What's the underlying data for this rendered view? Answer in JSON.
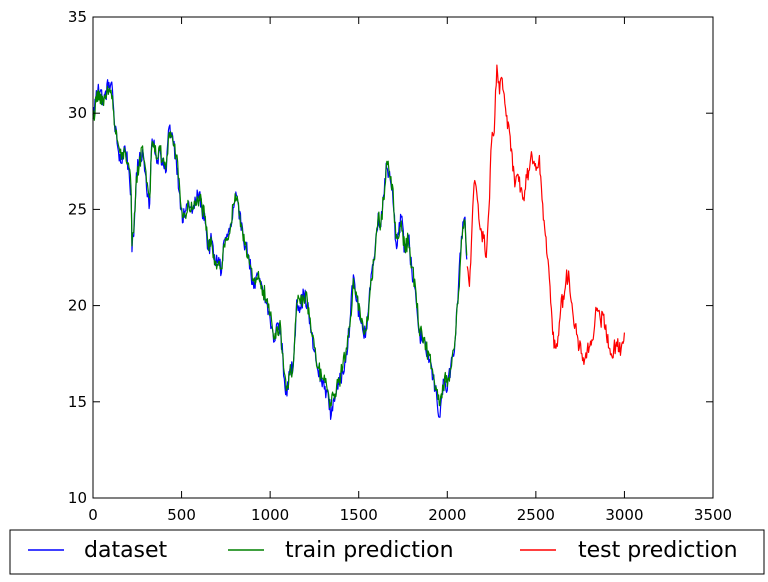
{
  "chart_data": {
    "type": "line",
    "title": "",
    "xlabel": "",
    "ylabel": "",
    "xlim": [
      0,
      3500
    ],
    "ylim": [
      10,
      35
    ],
    "x_ticks": [
      0,
      500,
      1000,
      1500,
      2000,
      2500,
      3000,
      3500
    ],
    "y_ticks": [
      10,
      15,
      20,
      25,
      30,
      35
    ],
    "grid": false,
    "legend_position": "bottom (outside plot, horizontal)",
    "series": [
      {
        "name": "dataset",
        "color": "#0000ff",
        "points": [
          [
            0,
            29.9
          ],
          [
            30,
            31.5
          ],
          [
            60,
            30.6
          ],
          [
            90,
            31.6
          ],
          [
            110,
            31.2
          ],
          [
            120,
            29.6
          ],
          [
            140,
            28.2
          ],
          [
            160,
            27.4
          ],
          [
            180,
            28.3
          ],
          [
            200,
            27.2
          ],
          [
            215,
            25.8
          ],
          [
            220,
            22.8
          ],
          [
            230,
            23.6
          ],
          [
            245,
            26.9
          ],
          [
            260,
            27.4
          ],
          [
            280,
            28.1
          ],
          [
            295,
            26.9
          ],
          [
            310,
            25.8
          ],
          [
            320,
            25.3
          ],
          [
            330,
            28.2
          ],
          [
            345,
            28.6
          ],
          [
            360,
            27.4
          ],
          [
            375,
            28.1
          ],
          [
            390,
            27.3
          ],
          [
            410,
            26.9
          ],
          [
            430,
            29.3
          ],
          [
            450,
            28.8
          ],
          [
            470,
            27.6
          ],
          [
            490,
            25.8
          ],
          [
            505,
            24.3
          ],
          [
            520,
            24.9
          ],
          [
            540,
            25.4
          ],
          [
            560,
            24.8
          ],
          [
            580,
            25.4
          ],
          [
            600,
            25.9
          ],
          [
            615,
            24.9
          ],
          [
            630,
            24.8
          ],
          [
            650,
            22.9
          ],
          [
            670,
            23.4
          ],
          [
            690,
            22.1
          ],
          [
            710,
            22.5
          ],
          [
            725,
            21.7
          ],
          [
            740,
            23.4
          ],
          [
            760,
            23.6
          ],
          [
            780,
            24.1
          ],
          [
            795,
            25.1
          ],
          [
            810,
            25.7
          ],
          [
            825,
            24.5
          ],
          [
            840,
            24.3
          ],
          [
            860,
            23.1
          ],
          [
            880,
            22.6
          ],
          [
            900,
            21.1
          ],
          [
            915,
            20.9
          ],
          [
            930,
            21.6
          ],
          [
            945,
            21.1
          ],
          [
            960,
            20.6
          ],
          [
            980,
            20.1
          ],
          [
            1000,
            19.3
          ],
          [
            1020,
            18.1
          ],
          [
            1040,
            19.1
          ],
          [
            1060,
            18.6
          ],
          [
            1080,
            16.2
          ],
          [
            1095,
            15.3
          ],
          [
            1110,
            16.6
          ],
          [
            1130,
            16.8
          ],
          [
            1150,
            20.3
          ],
          [
            1170,
            19.9
          ],
          [
            1190,
            20.6
          ],
          [
            1210,
            20.1
          ],
          [
            1230,
            18.6
          ],
          [
            1250,
            17.6
          ],
          [
            1270,
            16.6
          ],
          [
            1290,
            16.1
          ],
          [
            1310,
            15.8
          ],
          [
            1330,
            15.1
          ],
          [
            1345,
            14.3
          ],
          [
            1360,
            15.2
          ],
          [
            1375,
            15.6
          ],
          [
            1390,
            15.9
          ],
          [
            1410,
            16.6
          ],
          [
            1430,
            17.6
          ],
          [
            1450,
            19.1
          ],
          [
            1470,
            21.6
          ],
          [
            1490,
            20.2
          ],
          [
            1510,
            19.2
          ],
          [
            1530,
            18.3
          ],
          [
            1550,
            19.4
          ],
          [
            1570,
            21.6
          ],
          [
            1590,
            22.6
          ],
          [
            1610,
            24.8
          ],
          [
            1625,
            24.1
          ],
          [
            1640,
            25.7
          ],
          [
            1655,
            27.4
          ],
          [
            1670,
            26.9
          ],
          [
            1690,
            26.1
          ],
          [
            1710,
            23.3
          ],
          [
            1725,
            23.7
          ],
          [
            1740,
            24.6
          ],
          [
            1760,
            22.8
          ],
          [
            1780,
            23.6
          ],
          [
            1800,
            21.8
          ],
          [
            1820,
            20.8
          ],
          [
            1840,
            18.6
          ],
          [
            1860,
            18.1
          ],
          [
            1880,
            17.6
          ],
          [
            1900,
            17.2
          ],
          [
            1920,
            16.2
          ],
          [
            1940,
            15.3
          ],
          [
            1955,
            14.2
          ],
          [
            1970,
            15.4
          ],
          [
            1985,
            16.1
          ],
          [
            2000,
            15.6
          ],
          [
            2020,
            16.9
          ],
          [
            2040,
            17.6
          ],
          [
            2060,
            20.3
          ],
          [
            2080,
            23.6
          ],
          [
            2100,
            24.6
          ],
          [
            2110,
            22.4
          ]
        ]
      },
      {
        "name": "train prediction",
        "color": "#008000",
        "points": [
          [
            0,
            29.7
          ],
          [
            30,
            31.2
          ],
          [
            60,
            30.4
          ],
          [
            90,
            31.2
          ],
          [
            110,
            30.9
          ],
          [
            120,
            29.4
          ],
          [
            140,
            28.5
          ],
          [
            160,
            27.6
          ],
          [
            180,
            28.0
          ],
          [
            200,
            27.4
          ],
          [
            215,
            26.0
          ],
          [
            220,
            23.1
          ],
          [
            230,
            23.8
          ],
          [
            245,
            26.7
          ],
          [
            260,
            27.2
          ],
          [
            280,
            28.3
          ],
          [
            295,
            27.2
          ],
          [
            310,
            26.1
          ],
          [
            320,
            25.6
          ],
          [
            330,
            28.0
          ],
          [
            345,
            28.4
          ],
          [
            360,
            27.6
          ],
          [
            375,
            28.3
          ],
          [
            390,
            27.5
          ],
          [
            410,
            27.1
          ],
          [
            430,
            29.0
          ],
          [
            450,
            28.6
          ],
          [
            470,
            27.8
          ],
          [
            490,
            26.0
          ],
          [
            505,
            24.6
          ],
          [
            520,
            24.7
          ],
          [
            540,
            25.2
          ],
          [
            560,
            25.0
          ],
          [
            580,
            25.2
          ],
          [
            600,
            25.7
          ],
          [
            615,
            25.1
          ],
          [
            630,
            24.6
          ],
          [
            650,
            23.1
          ],
          [
            670,
            23.2
          ],
          [
            690,
            22.3
          ],
          [
            710,
            22.3
          ],
          [
            725,
            21.9
          ],
          [
            740,
            23.2
          ],
          [
            760,
            23.4
          ],
          [
            780,
            24.3
          ],
          [
            795,
            25.3
          ],
          [
            810,
            25.5
          ],
          [
            825,
            24.7
          ],
          [
            840,
            24.1
          ],
          [
            860,
            23.3
          ],
          [
            880,
            22.4
          ],
          [
            900,
            21.3
          ],
          [
            915,
            21.1
          ],
          [
            930,
            21.4
          ],
          [
            945,
            21.3
          ],
          [
            960,
            20.8
          ],
          [
            980,
            20.3
          ],
          [
            1000,
            19.5
          ],
          [
            1020,
            18.3
          ],
          [
            1040,
            18.9
          ],
          [
            1060,
            18.8
          ],
          [
            1080,
            16.5
          ],
          [
            1095,
            15.7
          ],
          [
            1110,
            16.4
          ],
          [
            1130,
            16.9
          ],
          [
            1150,
            20.1
          ],
          [
            1170,
            20.1
          ],
          [
            1190,
            20.4
          ],
          [
            1210,
            20.3
          ],
          [
            1230,
            18.8
          ],
          [
            1250,
            17.8
          ],
          [
            1270,
            16.8
          ],
          [
            1290,
            16.3
          ],
          [
            1310,
            16.0
          ],
          [
            1330,
            15.4
          ],
          [
            1345,
            14.8
          ],
          [
            1360,
            15.4
          ],
          [
            1375,
            15.8
          ],
          [
            1390,
            16.1
          ],
          [
            1410,
            16.8
          ],
          [
            1430,
            17.8
          ],
          [
            1450,
            18.9
          ],
          [
            1470,
            21.4
          ],
          [
            1490,
            20.4
          ],
          [
            1510,
            19.4
          ],
          [
            1530,
            18.5
          ],
          [
            1550,
            19.2
          ],
          [
            1570,
            21.4
          ],
          [
            1590,
            22.4
          ],
          [
            1610,
            24.6
          ],
          [
            1625,
            24.3
          ],
          [
            1640,
            25.5
          ],
          [
            1655,
            27.2
          ],
          [
            1670,
            27.1
          ],
          [
            1690,
            26.3
          ],
          [
            1710,
            23.5
          ],
          [
            1725,
            23.5
          ],
          [
            1740,
            24.4
          ],
          [
            1760,
            23.0
          ],
          [
            1780,
            23.4
          ],
          [
            1800,
            22.0
          ],
          [
            1820,
            21.0
          ],
          [
            1840,
            18.8
          ],
          [
            1860,
            18.3
          ],
          [
            1880,
            17.8
          ],
          [
            1900,
            17.4
          ],
          [
            1920,
            16.4
          ],
          [
            1940,
            15.6
          ],
          [
            1955,
            14.8
          ],
          [
            1970,
            15.2
          ],
          [
            1985,
            16.3
          ],
          [
            2000,
            15.8
          ],
          [
            2020,
            16.7
          ],
          [
            2040,
            17.8
          ],
          [
            2060,
            20.1
          ],
          [
            2080,
            23.4
          ],
          [
            2100,
            24.4
          ],
          [
            2110,
            22.6
          ]
        ]
      },
      {
        "name": "test prediction",
        "color": "#ff0000",
        "points": [
          [
            2110,
            22.0
          ],
          [
            2125,
            21.0
          ],
          [
            2140,
            24.2
          ],
          [
            2155,
            26.5
          ],
          [
            2170,
            25.5
          ],
          [
            2190,
            24.0
          ],
          [
            2205,
            23.5
          ],
          [
            2220,
            22.5
          ],
          [
            2235,
            25.0
          ],
          [
            2250,
            28.5
          ],
          [
            2265,
            29.0
          ],
          [
            2280,
            32.5
          ],
          [
            2295,
            31.0
          ],
          [
            2310,
            31.8
          ],
          [
            2325,
            30.5
          ],
          [
            2340,
            29.2
          ],
          [
            2355,
            28.8
          ],
          [
            2370,
            27.0
          ],
          [
            2385,
            26.4
          ],
          [
            2400,
            26.8
          ],
          [
            2415,
            26.1
          ],
          [
            2430,
            25.6
          ],
          [
            2445,
            26.8
          ],
          [
            2460,
            27.0
          ],
          [
            2475,
            28.0
          ],
          [
            2490,
            27.5
          ],
          [
            2505,
            27.2
          ],
          [
            2520,
            27.8
          ],
          [
            2535,
            25.5
          ],
          [
            2550,
            24.0
          ],
          [
            2565,
            22.5
          ],
          [
            2580,
            21.0
          ],
          [
            2595,
            18.5
          ],
          [
            2610,
            17.8
          ],
          [
            2625,
            18.4
          ],
          [
            2640,
            19.8
          ],
          [
            2655,
            20.5
          ],
          [
            2670,
            21.3
          ],
          [
            2685,
            21.8
          ],
          [
            2700,
            20.2
          ],
          [
            2715,
            19.0
          ],
          [
            2730,
            18.5
          ],
          [
            2745,
            17.8
          ],
          [
            2760,
            17.5
          ],
          [
            2775,
            17.2
          ],
          [
            2790,
            17.7
          ],
          [
            2805,
            17.9
          ],
          [
            2820,
            18.2
          ],
          [
            2835,
            19.4
          ],
          [
            2850,
            19.7
          ],
          [
            2865,
            19.2
          ],
          [
            2880,
            19.5
          ],
          [
            2895,
            19.0
          ],
          [
            2910,
            17.8
          ],
          [
            2925,
            17.5
          ],
          [
            2940,
            17.8
          ],
          [
            2955,
            18.1
          ],
          [
            2970,
            17.6
          ],
          [
            2985,
            18.0
          ],
          [
            3000,
            18.6
          ]
        ]
      }
    ]
  }
}
